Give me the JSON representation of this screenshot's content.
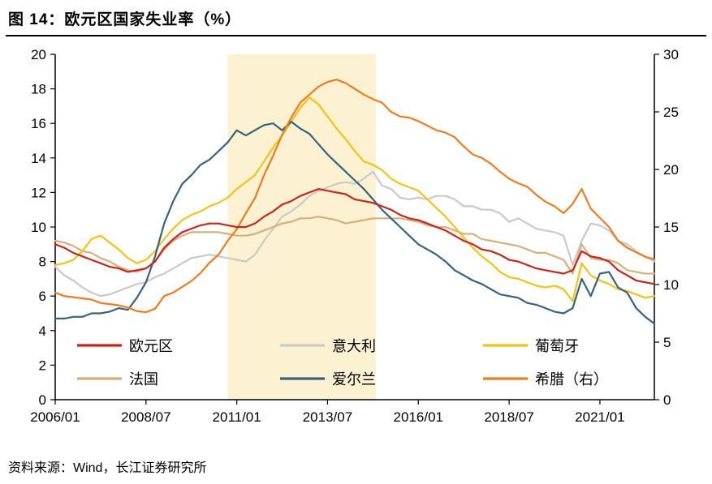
{
  "title": "图 14：欧元区国家失业率（%）",
  "source": "资料来源：Wind，长江证券研究所",
  "chart_data": {
    "type": "line",
    "x": [
      "2006/01",
      "2006/04",
      "2006/07",
      "2006/10",
      "2007/01",
      "2007/04",
      "2007/07",
      "2007/10",
      "2008/01",
      "2008/04",
      "2008/07",
      "2008/10",
      "2009/01",
      "2009/04",
      "2009/07",
      "2009/10",
      "2010/01",
      "2010/04",
      "2010/07",
      "2010/10",
      "2011/01",
      "2011/04",
      "2011/07",
      "2011/10",
      "2012/01",
      "2012/04",
      "2012/07",
      "2012/10",
      "2013/01",
      "2013/04",
      "2013/07",
      "2013/10",
      "2014/01",
      "2014/04",
      "2014/07",
      "2014/10",
      "2015/01",
      "2015/04",
      "2015/07",
      "2015/10",
      "2016/01",
      "2016/04",
      "2016/07",
      "2016/10",
      "2017/01",
      "2017/04",
      "2017/07",
      "2017/10",
      "2018/01",
      "2018/04",
      "2018/07",
      "2018/10",
      "2019/01",
      "2019/04",
      "2019/07",
      "2019/10",
      "2020/01",
      "2020/04",
      "2020/07",
      "2020/10",
      "2021/01",
      "2021/04",
      "2021/07",
      "2021/10",
      "2022/01",
      "2022/04",
      "2022/07"
    ],
    "x_tick_labels": [
      "2006/01",
      "2008/07",
      "2011/01",
      "2013/07",
      "2016/01",
      "2018/07",
      "2021/01"
    ],
    "y_left": {
      "min": 0,
      "max": 20,
      "step": 2
    },
    "y_right": {
      "min": 0,
      "max": 30,
      "step": 5
    },
    "highlight_band": {
      "from": "2010/10",
      "to": "2014/11",
      "color": "#fcf1d1"
    },
    "legend_note": "two rows, three columns, inside plot bottom",
    "series": [
      {
        "key": "eurozone",
        "name": "欧元区",
        "axis": "left",
        "color": "#c9251c",
        "values": [
          9.0,
          8.8,
          8.5,
          8.3,
          8.1,
          7.9,
          7.7,
          7.6,
          7.4,
          7.5,
          7.6,
          8.0,
          8.8,
          9.3,
          9.7,
          9.9,
          10.1,
          10.2,
          10.2,
          10.1,
          10.0,
          10.0,
          10.2,
          10.6,
          10.9,
          11.3,
          11.5,
          11.8,
          12.0,
          12.2,
          12.1,
          12.0,
          11.9,
          11.6,
          11.5,
          11.4,
          11.2,
          11.0,
          10.7,
          10.5,
          10.4,
          10.2,
          10.0,
          9.8,
          9.5,
          9.2,
          9.0,
          8.7,
          8.6,
          8.4,
          8.1,
          8.0,
          7.8,
          7.6,
          7.5,
          7.4,
          7.3,
          7.5,
          8.6,
          8.3,
          8.2,
          8.0,
          7.5,
          7.2,
          6.9,
          6.8,
          6.7
        ]
      },
      {
        "key": "italy",
        "name": "意大利",
        "axis": "left",
        "color": "#c9c9c9",
        "values": [
          7.7,
          7.2,
          6.9,
          6.5,
          6.2,
          6.0,
          6.1,
          6.3,
          6.5,
          6.7,
          6.8,
          7.1,
          7.3,
          7.6,
          7.9,
          8.2,
          8.3,
          8.4,
          8.3,
          8.2,
          8.1,
          8.0,
          8.4,
          9.2,
          9.9,
          10.6,
          10.9,
          11.3,
          11.8,
          12.1,
          12.3,
          12.5,
          12.6,
          12.5,
          12.8,
          13.2,
          12.4,
          12.2,
          11.7,
          11.6,
          11.7,
          11.6,
          11.8,
          11.8,
          11.6,
          11.2,
          11.2,
          11.0,
          11.0,
          10.8,
          10.3,
          10.5,
          10.2,
          9.9,
          9.8,
          9.7,
          9.5,
          7.8,
          9.2,
          10.2,
          10.1,
          9.8,
          9.2,
          9.0,
          8.6,
          8.3,
          8.0
        ]
      },
      {
        "key": "portugal",
        "name": "葡萄牙",
        "axis": "left",
        "color": "#f3c313",
        "values": [
          7.8,
          7.9,
          8.1,
          8.6,
          9.3,
          9.5,
          9.1,
          8.7,
          8.2,
          7.9,
          8.1,
          8.6,
          9.3,
          9.9,
          10.4,
          10.7,
          10.9,
          11.2,
          11.4,
          11.7,
          12.2,
          12.6,
          13.0,
          13.8,
          14.6,
          15.3,
          16.1,
          16.9,
          17.5,
          17.1,
          16.4,
          15.7,
          15.1,
          14.4,
          13.8,
          13.6,
          13.3,
          12.8,
          12.5,
          12.3,
          12.1,
          11.6,
          11.1,
          10.6,
          10.0,
          9.4,
          8.8,
          8.3,
          7.9,
          7.4,
          7.1,
          7.0,
          6.8,
          6.6,
          6.5,
          6.6,
          6.4,
          5.7,
          7.9,
          7.2,
          6.9,
          6.7,
          6.4,
          6.3,
          6.1,
          5.9,
          6.0
        ]
      },
      {
        "key": "france",
        "name": "法国",
        "axis": "left",
        "color": "#d4b17a",
        "values": [
          9.2,
          9.1,
          8.9,
          8.6,
          8.5,
          8.2,
          8.0,
          7.7,
          7.5,
          7.4,
          7.6,
          8.0,
          8.7,
          9.2,
          9.5,
          9.7,
          9.7,
          9.7,
          9.7,
          9.6,
          9.5,
          9.5,
          9.6,
          9.8,
          10.0,
          10.2,
          10.3,
          10.5,
          10.5,
          10.6,
          10.5,
          10.4,
          10.2,
          10.3,
          10.4,
          10.5,
          10.5,
          10.5,
          10.5,
          10.4,
          10.3,
          10.1,
          10.0,
          10.0,
          9.8,
          9.6,
          9.6,
          9.3,
          9.2,
          9.1,
          9.0,
          8.9,
          8.7,
          8.5,
          8.5,
          8.3,
          8.1,
          7.3,
          9.0,
          8.2,
          8.1,
          8.1,
          7.9,
          7.5,
          7.4,
          7.3,
          7.3
        ]
      },
      {
        "key": "ireland",
        "name": "爱尔兰",
        "axis": "left",
        "color": "#35637f",
        "values": [
          4.7,
          4.7,
          4.8,
          4.8,
          5.0,
          5.0,
          5.1,
          5.3,
          5.2,
          5.9,
          6.8,
          8.3,
          10.2,
          11.5,
          12.5,
          13.0,
          13.6,
          13.9,
          14.4,
          14.9,
          15.6,
          15.3,
          15.6,
          15.9,
          16.0,
          15.6,
          16.1,
          15.7,
          15.4,
          14.8,
          14.2,
          13.7,
          13.2,
          12.7,
          12.2,
          11.6,
          11.0,
          10.5,
          10.0,
          9.5,
          9.0,
          8.7,
          8.4,
          8.0,
          7.5,
          7.2,
          6.9,
          6.7,
          6.4,
          6.1,
          6.0,
          5.9,
          5.6,
          5.5,
          5.3,
          5.1,
          5.0,
          5.3,
          7.0,
          6.0,
          7.3,
          7.4,
          6.5,
          6.2,
          5.3,
          4.8,
          4.4
        ]
      },
      {
        "key": "greece",
        "name": "希腊（右）",
        "axis": "right",
        "color": "#ee7c1f",
        "values": [
          9.3,
          9.0,
          8.9,
          8.8,
          8.7,
          8.4,
          8.3,
          8.2,
          8.0,
          7.7,
          7.6,
          7.9,
          9.0,
          9.3,
          9.8,
          10.3,
          11.0,
          11.9,
          12.6,
          13.8,
          14.8,
          16.2,
          17.5,
          19.5,
          21.2,
          23.0,
          24.5,
          25.8,
          26.5,
          27.2,
          27.6,
          27.8,
          27.5,
          27.0,
          26.5,
          26.1,
          25.8,
          25.0,
          24.6,
          24.5,
          24.2,
          23.8,
          23.4,
          23.2,
          22.8,
          22.0,
          21.3,
          21.0,
          20.5,
          19.8,
          19.2,
          18.8,
          18.5,
          17.8,
          17.2,
          16.8,
          16.2,
          17.0,
          18.3,
          16.6,
          15.8,
          15.0,
          13.8,
          13.2,
          12.8,
          12.4,
          12.2
        ]
      }
    ]
  }
}
